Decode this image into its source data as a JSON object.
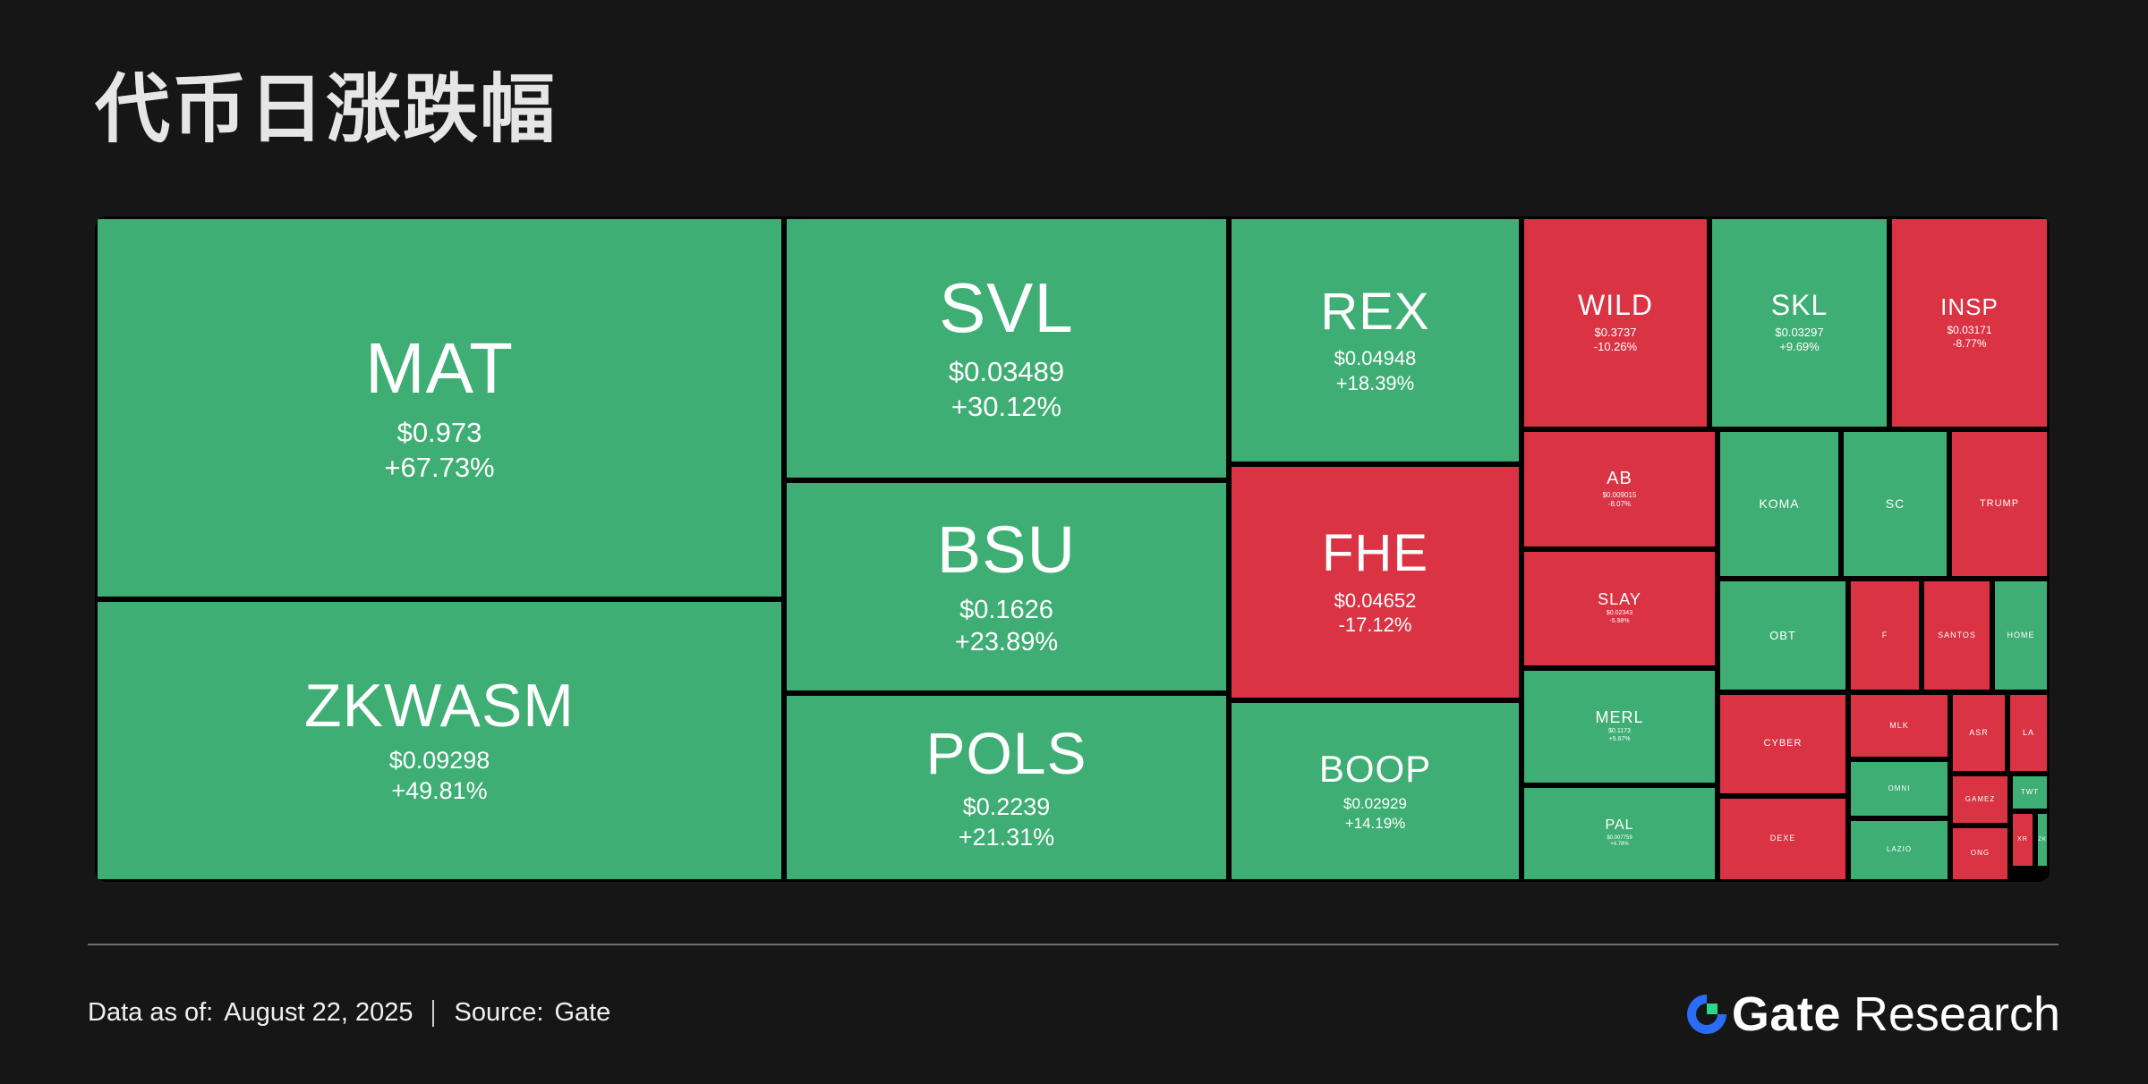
{
  "title": "代币日涨跌幅",
  "colors": {
    "up": "#3fae74",
    "down": "#d93344",
    "background": "#161616"
  },
  "footer": {
    "data_label": "Data as of:",
    "date": "August  22, 2025",
    "source_label": "Source:",
    "source": "Gate"
  },
  "brand": {
    "name": "Gate",
    "suffix": "Research",
    "logo_icon": "gate-logo-icon"
  },
  "chart_data": {
    "type": "treemap",
    "title": "代币日涨跌幅",
    "tiles": [
      {
        "symbol": "MAT",
        "price": "$0.973",
        "change": "+67.73%",
        "change_value": 67.73
      },
      {
        "symbol": "ZKWASM",
        "price": "$0.09298",
        "change": "+49.81%",
        "change_value": 49.81
      },
      {
        "symbol": "SVL",
        "price": "$0.03489",
        "change": "+30.12%",
        "change_value": 30.12
      },
      {
        "symbol": "BSU",
        "price": "$0.1626",
        "change": "+23.89%",
        "change_value": 23.89
      },
      {
        "symbol": "POLS",
        "price": "$0.2239",
        "change": "+21.31%",
        "change_value": 21.31
      },
      {
        "symbol": "REX",
        "price": "$0.04948",
        "change": "+18.39%",
        "change_value": 18.39
      },
      {
        "symbol": "FHE",
        "price": "$0.04652",
        "change": "-17.12%",
        "change_value": -17.12
      },
      {
        "symbol": "BOOP",
        "price": "$0.02929",
        "change": "+14.19%",
        "change_value": 14.19
      },
      {
        "symbol": "WILD",
        "price": "$0.3737",
        "change": "-10.26%",
        "change_value": -10.26
      },
      {
        "symbol": "SKL",
        "price": "$0.03297",
        "change": "+9.69%",
        "change_value": 9.69
      },
      {
        "symbol": "INSP",
        "price": "$0.03171",
        "change": "-8.77%",
        "change_value": -8.77
      },
      {
        "symbol": "AB",
        "price": "$0.009015",
        "change": "-8.07%",
        "change_value": -8.07
      },
      {
        "symbol": "SLAY",
        "price": "$0.02343",
        "change": "-5.98%",
        "change_value": -5.98
      },
      {
        "symbol": "MERL",
        "price": "$0.1173",
        "change": "+5.67%",
        "change_value": 5.67
      },
      {
        "symbol": "PAL",
        "price": "$0.007759",
        "change": "+4.78%",
        "change_value": 4.78
      },
      {
        "symbol": "KOMA",
        "price": "",
        "change": "",
        "change_value": 4.5
      },
      {
        "symbol": "SC",
        "price": "",
        "change": "",
        "change_value": 4.2
      },
      {
        "symbol": "TRUMP",
        "price": "",
        "change": "",
        "change_value": -4.0
      },
      {
        "symbol": "OBT",
        "price": "",
        "change": "",
        "change_value": 3.8
      },
      {
        "symbol": "F",
        "price": "",
        "change": "",
        "change_value": -3.5
      },
      {
        "symbol": "SANTOS",
        "price": "",
        "change": "",
        "change_value": -3.4
      },
      {
        "symbol": "HOME",
        "price": "",
        "change": "",
        "change_value": 3.3
      },
      {
        "symbol": "CYBER",
        "price": "",
        "change": "",
        "change_value": -3.2
      },
      {
        "symbol": "MLK",
        "price": "",
        "change": "",
        "change_value": -3.0
      },
      {
        "symbol": "ASR",
        "price": "",
        "change": "",
        "change_value": -2.9
      },
      {
        "symbol": "LA",
        "price": "",
        "change": "",
        "change_value": -2.8
      },
      {
        "symbol": "DEXE",
        "price": "",
        "change": "",
        "change_value": -2.8
      },
      {
        "symbol": "OMNI",
        "price": "",
        "change": "",
        "change_value": 2.7
      },
      {
        "symbol": "GAMEZ",
        "price": "",
        "change": "",
        "change_value": -2.6
      },
      {
        "symbol": "TWT",
        "price": "",
        "change": "",
        "change_value": 2.5
      },
      {
        "symbol": "LAZIO",
        "price": "",
        "change": "",
        "change_value": 2.4
      },
      {
        "symbol": "ONG",
        "price": "",
        "change": "",
        "change_value": -2.3
      },
      {
        "symbol": "XR",
        "price": "",
        "change": "",
        "change_value": -2.2
      },
      {
        "symbol": "ZK",
        "price": "",
        "change": "",
        "change_value": 2.1
      }
    ]
  }
}
